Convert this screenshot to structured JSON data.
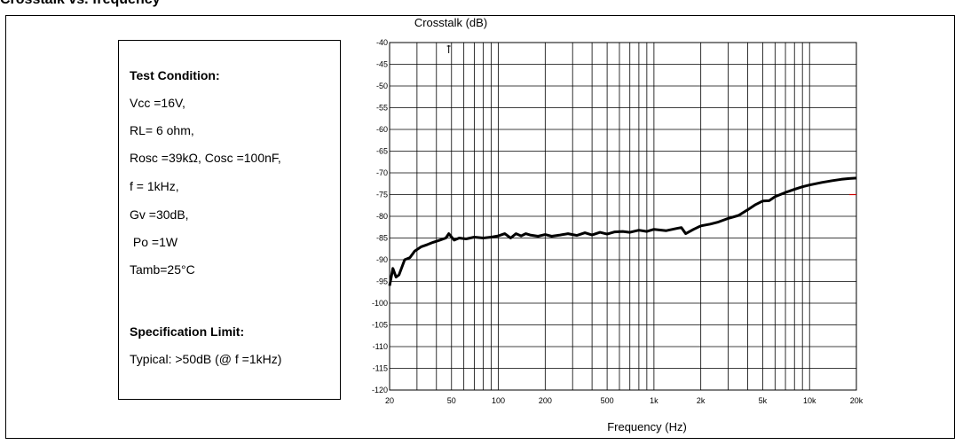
{
  "figure_title": "Crosstalk vs. frequency",
  "test_box": {
    "heading": "Test Condition:",
    "lines": [
      "Vcc =16V,",
      "RL= 6 ohm,",
      "Rosc =39kΩ, Cosc =100nF,",
      "f = 1kHz,",
      "Gv =30dB,",
      " Po =1W",
      "Tamb=25°C"
    ],
    "spec_heading": "Specification Limit:",
    "spec_line": "Typical: >50dB (@ f =1kHz)"
  },
  "chart_data": {
    "type": "line",
    "title": "",
    "ylabel": "Crosstalk (dB)",
    "xlabel": "Frequency (Hz)",
    "xscale": "log",
    "xlim": [
      20,
      20000
    ],
    "ylim": [
      -120,
      -40
    ],
    "grid": true,
    "x_ticks": [
      20,
      50,
      100,
      200,
      500,
      1000,
      2000,
      5000,
      10000,
      20000
    ],
    "x_tick_labels": [
      "20",
      "50",
      "100",
      "200",
      "500",
      "1k",
      "2k",
      "5k",
      "10k",
      "20k"
    ],
    "y_ticks": [
      -40,
      -45,
      -50,
      -55,
      -60,
      -65,
      -70,
      -75,
      -80,
      -85,
      -90,
      -95,
      -100,
      -105,
      -110,
      -115,
      -120
    ],
    "y_tick_labels": [
      "-40",
      "-45",
      "-50",
      "-55",
      "-60",
      "-65",
      "-70",
      "-75",
      "-80",
      "-85",
      "-90",
      "-95",
      "-100",
      "-105",
      "-110",
      "-115",
      "-120"
    ],
    "line_color": "#000000",
    "series": [
      {
        "x": [
          20,
          21,
          22,
          23,
          25,
          27,
          29,
          32,
          35,
          38,
          42,
          46,
          48,
          52,
          56,
          62,
          70,
          80,
          90,
          100,
          110,
          120,
          130,
          140,
          150,
          160,
          180,
          200,
          220,
          250,
          280,
          320,
          360,
          400,
          450,
          500,
          560,
          630,
          700,
          800,
          900,
          1000,
          1200,
          1400,
          1500,
          1600,
          1800,
          2000,
          2300,
          2600,
          3000,
          3500,
          4000,
          4500,
          5000,
          5500,
          6000,
          7000,
          8000,
          9000,
          10000,
          12000,
          14000,
          16000,
          18000,
          20000
        ],
        "y": [
          -96,
          -92,
          -94,
          -93.5,
          -90,
          -89.5,
          -88,
          -87,
          -86.5,
          -86,
          -85.5,
          -85,
          -84,
          -85.5,
          -85,
          -85.2,
          -84.8,
          -85,
          -84.8,
          -84.5,
          -84,
          -85,
          -84,
          -84.5,
          -84,
          -84.3,
          -84.6,
          -84.2,
          -84.6,
          -84.3,
          -84,
          -84.4,
          -83.8,
          -84.3,
          -83.7,
          -84.1,
          -83.6,
          -83.5,
          -83.7,
          -83.2,
          -83.5,
          -83.0,
          -83.3,
          -82.8,
          -82.6,
          -84,
          -83,
          -82.2,
          -81.8,
          -81.3,
          -80.5,
          -79.8,
          -78.5,
          -77.3,
          -76.5,
          -76.4,
          -75.5,
          -74.5,
          -73.8,
          -73.2,
          -72.8,
          -72.2,
          -71.8,
          -71.5,
          -71.3,
          -71.2
        ]
      }
    ],
    "marker": {
      "x": 20000,
      "y": -75,
      "color": "#cc0000"
    }
  }
}
